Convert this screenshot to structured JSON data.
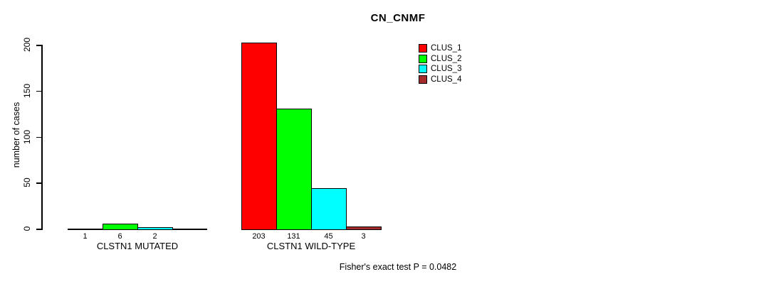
{
  "chart_data": {
    "type": "bar",
    "title": "CN_CNMF",
    "ylabel": "number of cases",
    "xlabel": "",
    "ylim": [
      0,
      200
    ],
    "yticks": [
      0,
      50,
      100,
      150,
      200
    ],
    "grid": false,
    "legend_position": "top-right",
    "legend": [
      {
        "label": "CLUS_1",
        "color": "#ff0000"
      },
      {
        "label": "CLUS_2",
        "color": "#00ff00"
      },
      {
        "label": "CLUS_3",
        "color": "#00ffff"
      },
      {
        "label": "CLUS_4",
        "color": "#a52a2a"
      }
    ],
    "groups": [
      {
        "label": "CLSTN1 MUTATED",
        "slots": 4,
        "bars": [
          {
            "cluster": "CLUS_1",
            "value": 1,
            "label": "1",
            "color": "#ff0000"
          },
          {
            "cluster": "CLUS_2",
            "value": 6,
            "label": "6",
            "color": "#00ff00"
          },
          {
            "cluster": "CLUS_3",
            "value": 2,
            "label": "2",
            "color": "#00ffff"
          }
        ]
      },
      {
        "label": "CLSTN1 WILD-TYPE",
        "slots": 4,
        "bars": [
          {
            "cluster": "CLUS_1",
            "value": 203,
            "label": "203",
            "color": "#ff0000"
          },
          {
            "cluster": "CLUS_2",
            "value": 131,
            "label": "131",
            "color": "#00ff00"
          },
          {
            "cluster": "CLUS_3",
            "value": 45,
            "label": "45",
            "color": "#00ffff"
          },
          {
            "cluster": "CLUS_4",
            "value": 3,
            "label": "3",
            "color": "#a52a2a"
          }
        ]
      }
    ],
    "annotation": "Fisher's exact test P = 0.0482"
  }
}
